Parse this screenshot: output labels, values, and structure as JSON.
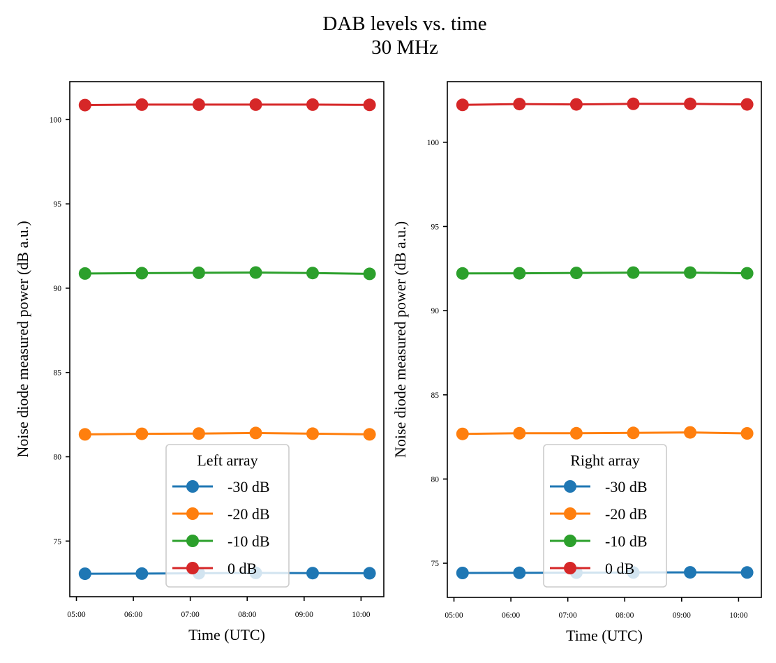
{
  "chart_data": [
    {
      "type": "line",
      "suptitle": "DAB levels vs. time\n30 MHz",
      "title": "",
      "xlabel": "Time (UTC)",
      "ylabel": "Noise diode measured power (dB a.u.)",
      "x": [
        "05:09",
        "06:09",
        "07:09",
        "08:09",
        "09:09",
        "10:09"
      ],
      "xticks": [
        "05:00",
        "06:00",
        "07:00",
        "08:00",
        "09:00",
        "10:00"
      ],
      "yticks": [
        75,
        80,
        85,
        90,
        95,
        100
      ],
      "ylim": [
        71.7,
        102.25
      ],
      "xlim": [
        "04:53",
        "10:24"
      ],
      "grid": false,
      "legend": {
        "title": "Left array",
        "placement": "lower-center"
      },
      "series": [
        {
          "name": "-30 dB",
          "color": "#1f77b4",
          "values": [
            73.06,
            73.07,
            73.09,
            73.11,
            73.1,
            73.09
          ]
        },
        {
          "name": "-20 dB",
          "color": "#ff7f0e",
          "values": [
            81.33,
            81.36,
            81.38,
            81.41,
            81.37,
            81.33
          ]
        },
        {
          "name": "-10 dB",
          "color": "#2ca02c",
          "values": [
            90.87,
            90.89,
            90.91,
            90.93,
            90.9,
            90.85
          ]
        },
        {
          "name": "0 dB",
          "color": "#d62728",
          "values": [
            100.86,
            100.89,
            100.89,
            100.89,
            100.89,
            100.87
          ]
        }
      ]
    },
    {
      "type": "line",
      "title": "",
      "xlabel": "Time (UTC)",
      "ylabel": "Noise diode measured power (dB a.u.)",
      "x": [
        "05:09",
        "06:09",
        "07:09",
        "08:09",
        "09:09",
        "10:09"
      ],
      "xticks": [
        "05:00",
        "06:00",
        "07:00",
        "08:00",
        "09:00",
        "10:00"
      ],
      "yticks": [
        75,
        80,
        85,
        90,
        95,
        100
      ],
      "ylim": [
        72.97,
        103.6
      ],
      "xlim": [
        "04:53",
        "10:24"
      ],
      "grid": false,
      "legend": {
        "title": "Right array",
        "placement": "lower-center"
      },
      "series": [
        {
          "name": "-30 dB",
          "color": "#1f77b4",
          "values": [
            74.42,
            74.43,
            74.44,
            74.45,
            74.46,
            74.45
          ]
        },
        {
          "name": "-20 dB",
          "color": "#ff7f0e",
          "values": [
            82.68,
            82.72,
            82.72,
            82.74,
            82.77,
            82.71
          ]
        },
        {
          "name": "-10 dB",
          "color": "#2ca02c",
          "values": [
            92.21,
            92.22,
            92.24,
            92.26,
            92.26,
            92.22
          ]
        },
        {
          "name": "0 dB",
          "color": "#d62728",
          "values": [
            102.22,
            102.27,
            102.25,
            102.28,
            102.28,
            102.25
          ]
        }
      ]
    }
  ],
  "figure": {
    "title_line1": "DAB levels vs. time",
    "title_line2": "30 MHz"
  }
}
